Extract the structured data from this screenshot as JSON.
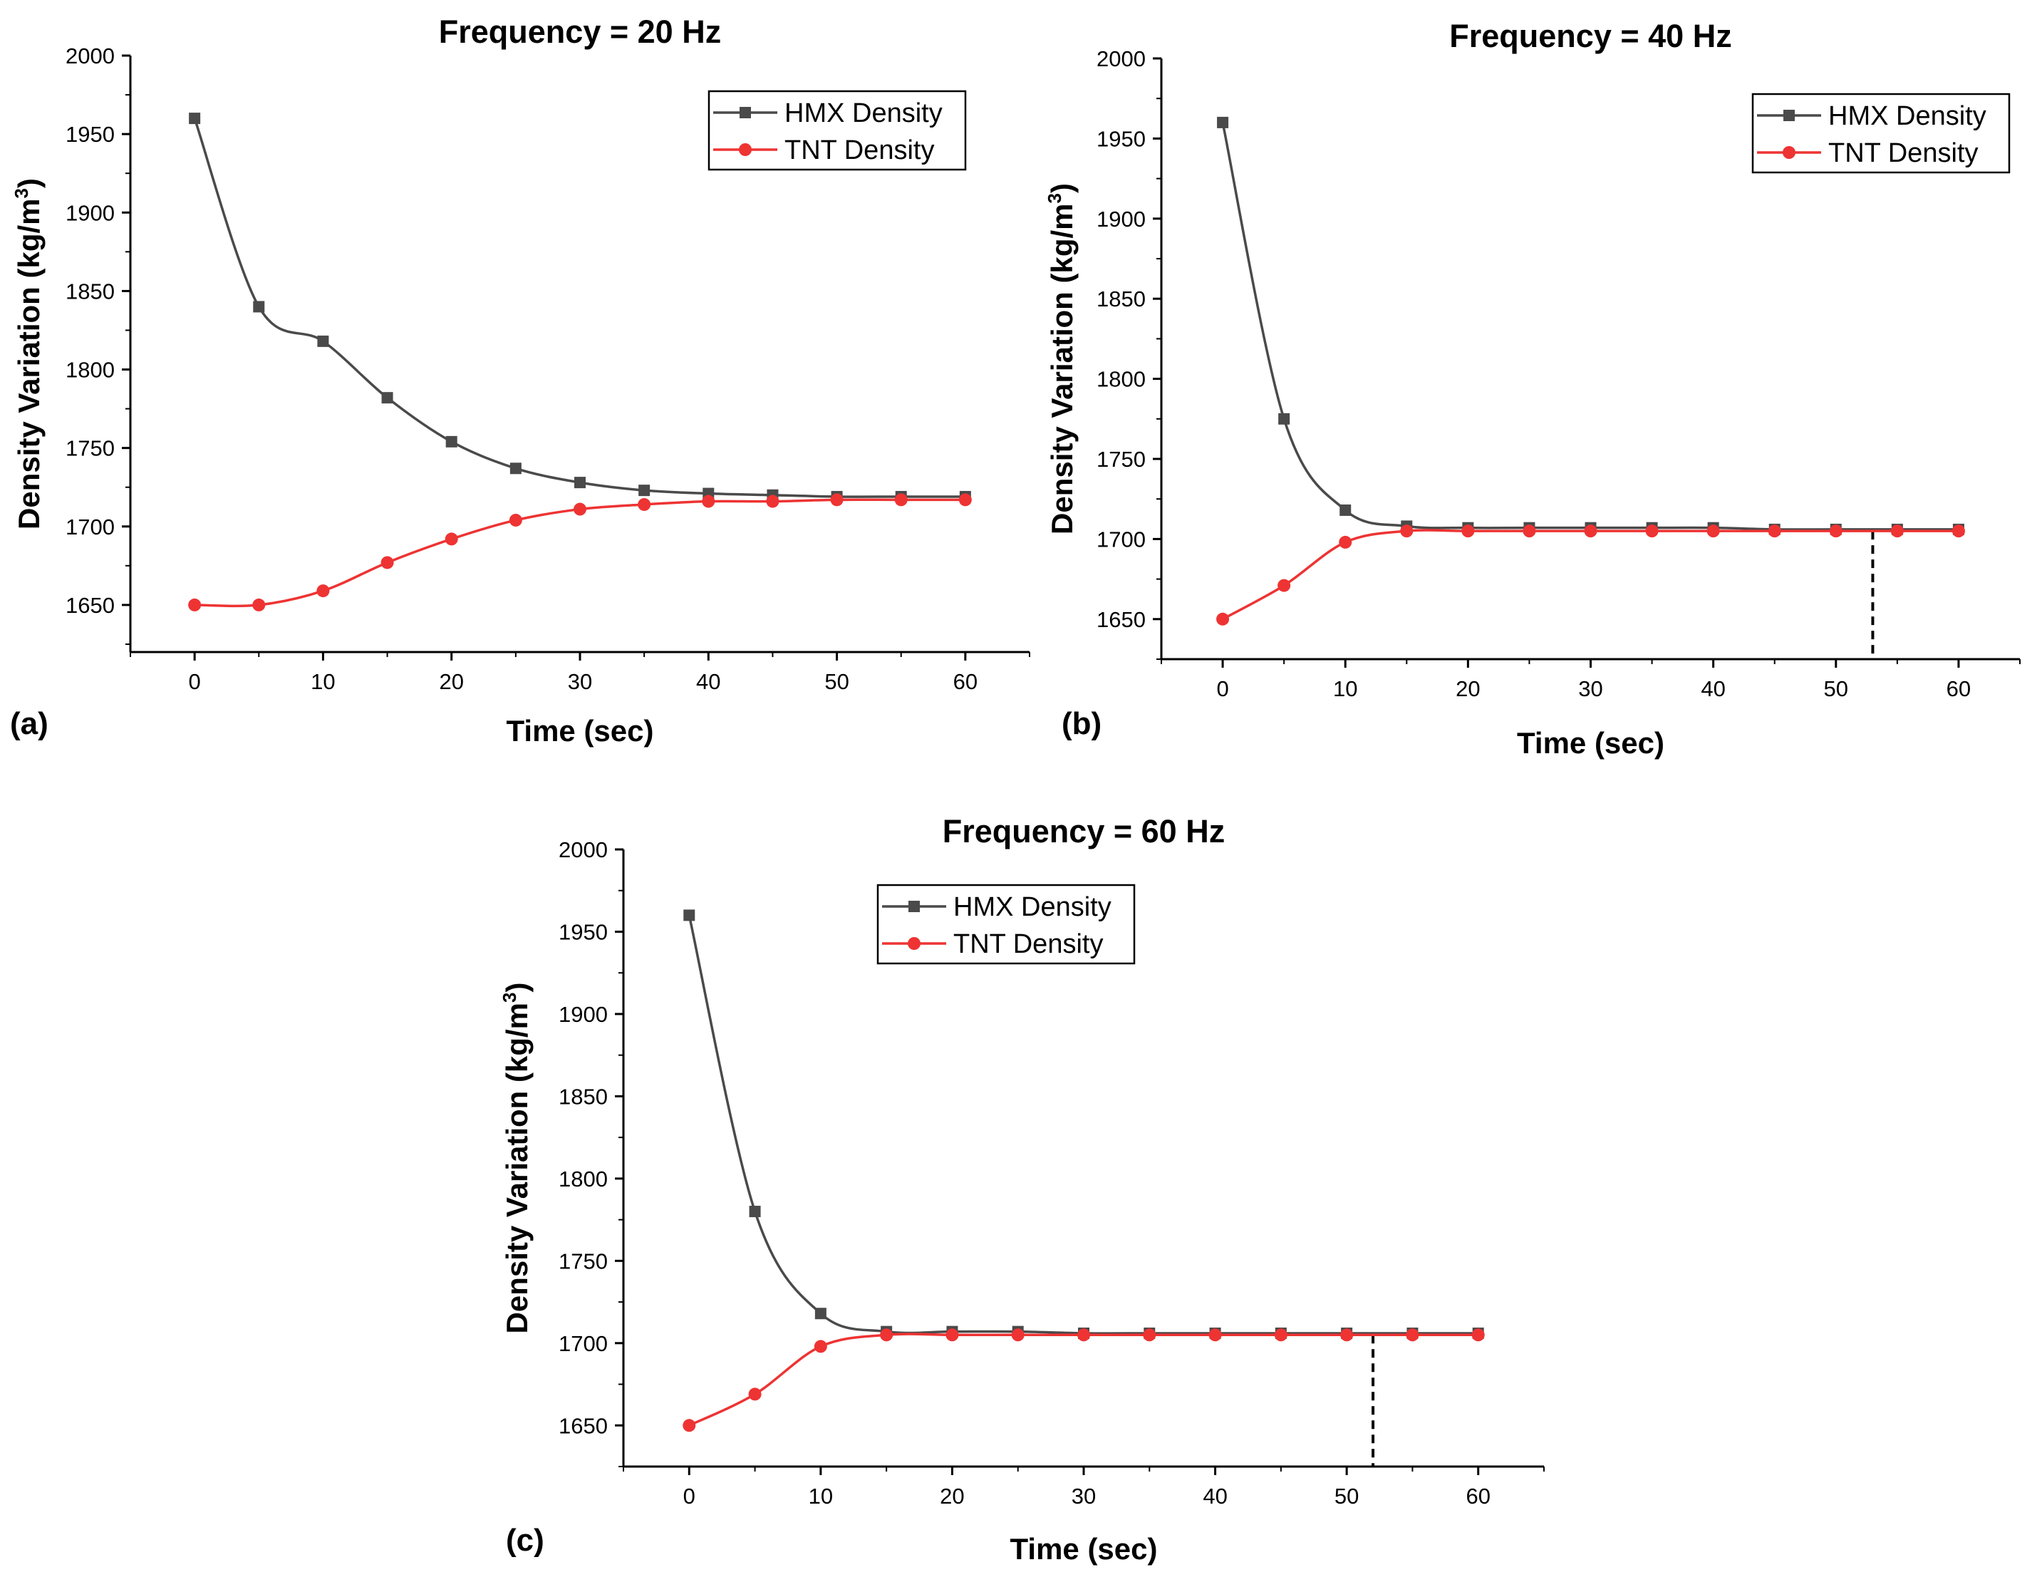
{
  "colors": {
    "hmx": "#4a4a4a",
    "tnt": "#ee3333",
    "axis": "#000000"
  },
  "chart_data": [
    {
      "type": "line",
      "panel_label": "(a)",
      "title": "Frequency = 20 Hz",
      "xlabel": "Time (sec)",
      "ylabel": "Density Variation (kg/m",
      "ylabel_sup": "3",
      "ylabel_close": ")",
      "xlim": [
        -5,
        65
      ],
      "ylim": [
        1620,
        2000
      ],
      "xticks": [
        0,
        10,
        20,
        30,
        40,
        50,
        60
      ],
      "yticks": [
        1650,
        1700,
        1750,
        1800,
        1850,
        1900,
        1950,
        2000
      ],
      "x": [
        0,
        5,
        10,
        15,
        20,
        25,
        30,
        35,
        40,
        45,
        50,
        55,
        60
      ],
      "series": [
        {
          "name": "HMX Density",
          "marker": "square",
          "values": [
            1960,
            1840,
            1818,
            1782,
            1754,
            1737,
            1728,
            1723,
            1721,
            1720,
            1719,
            1719,
            1719
          ]
        },
        {
          "name": "TNT Density",
          "marker": "circle",
          "values": [
            1650,
            1650,
            1659,
            1677,
            1692,
            1704,
            1711,
            1714,
            1716,
            1716,
            1717,
            1717,
            1717
          ]
        }
      ],
      "legend": "top-right",
      "marker_line_x": null
    },
    {
      "type": "line",
      "panel_label": "(b)",
      "title": "Frequency = 40 Hz",
      "xlabel": "Time (sec)",
      "ylabel": "Density Variation (kg/m",
      "ylabel_sup": "3",
      "ylabel_close": ")",
      "xlim": [
        -5,
        65
      ],
      "ylim": [
        1625,
        2000
      ],
      "xticks": [
        0,
        10,
        20,
        30,
        40,
        50,
        60
      ],
      "yticks": [
        1650,
        1700,
        1750,
        1800,
        1850,
        1900,
        1950,
        2000
      ],
      "x": [
        0,
        5,
        10,
        15,
        20,
        25,
        30,
        35,
        40,
        45,
        50,
        55,
        60
      ],
      "series": [
        {
          "name": "HMX Density",
          "marker": "square",
          "values": [
            1960,
            1775,
            1718,
            1708,
            1707,
            1707,
            1707,
            1707,
            1707,
            1706,
            1706,
            1706,
            1706
          ]
        },
        {
          "name": "TNT Density",
          "marker": "circle",
          "values": [
            1650,
            1671,
            1698,
            1705,
            1705,
            1705,
            1705,
            1705,
            1705,
            1705,
            1705,
            1705,
            1705
          ]
        }
      ],
      "legend": "top-right",
      "marker_line_x": 53
    },
    {
      "type": "line",
      "panel_label": "(c)",
      "title": "Frequency = 60 Hz",
      "xlabel": "Time (sec)",
      "ylabel": "Density Variation (kg/m",
      "ylabel_sup": "3",
      "ylabel_close": ")",
      "xlim": [
        -5,
        65
      ],
      "ylim": [
        1625,
        2000
      ],
      "xticks": [
        0,
        10,
        20,
        30,
        40,
        50,
        60
      ],
      "yticks": [
        1650,
        1700,
        1750,
        1800,
        1850,
        1900,
        1950,
        2000
      ],
      "x": [
        0,
        5,
        10,
        15,
        20,
        25,
        30,
        35,
        40,
        45,
        50,
        55,
        60
      ],
      "series": [
        {
          "name": "HMX Density",
          "marker": "square",
          "values": [
            1960,
            1780,
            1718,
            1707,
            1707,
            1707,
            1706,
            1706,
            1706,
            1706,
            1706,
            1706,
            1706
          ]
        },
        {
          "name": "TNT Density",
          "marker": "circle",
          "values": [
            1650,
            1669,
            1698,
            1705,
            1705,
            1705,
            1705,
            1705,
            1705,
            1705,
            1705,
            1705,
            1705
          ]
        }
      ],
      "legend": "top-right",
      "marker_line_x": 52
    }
  ]
}
